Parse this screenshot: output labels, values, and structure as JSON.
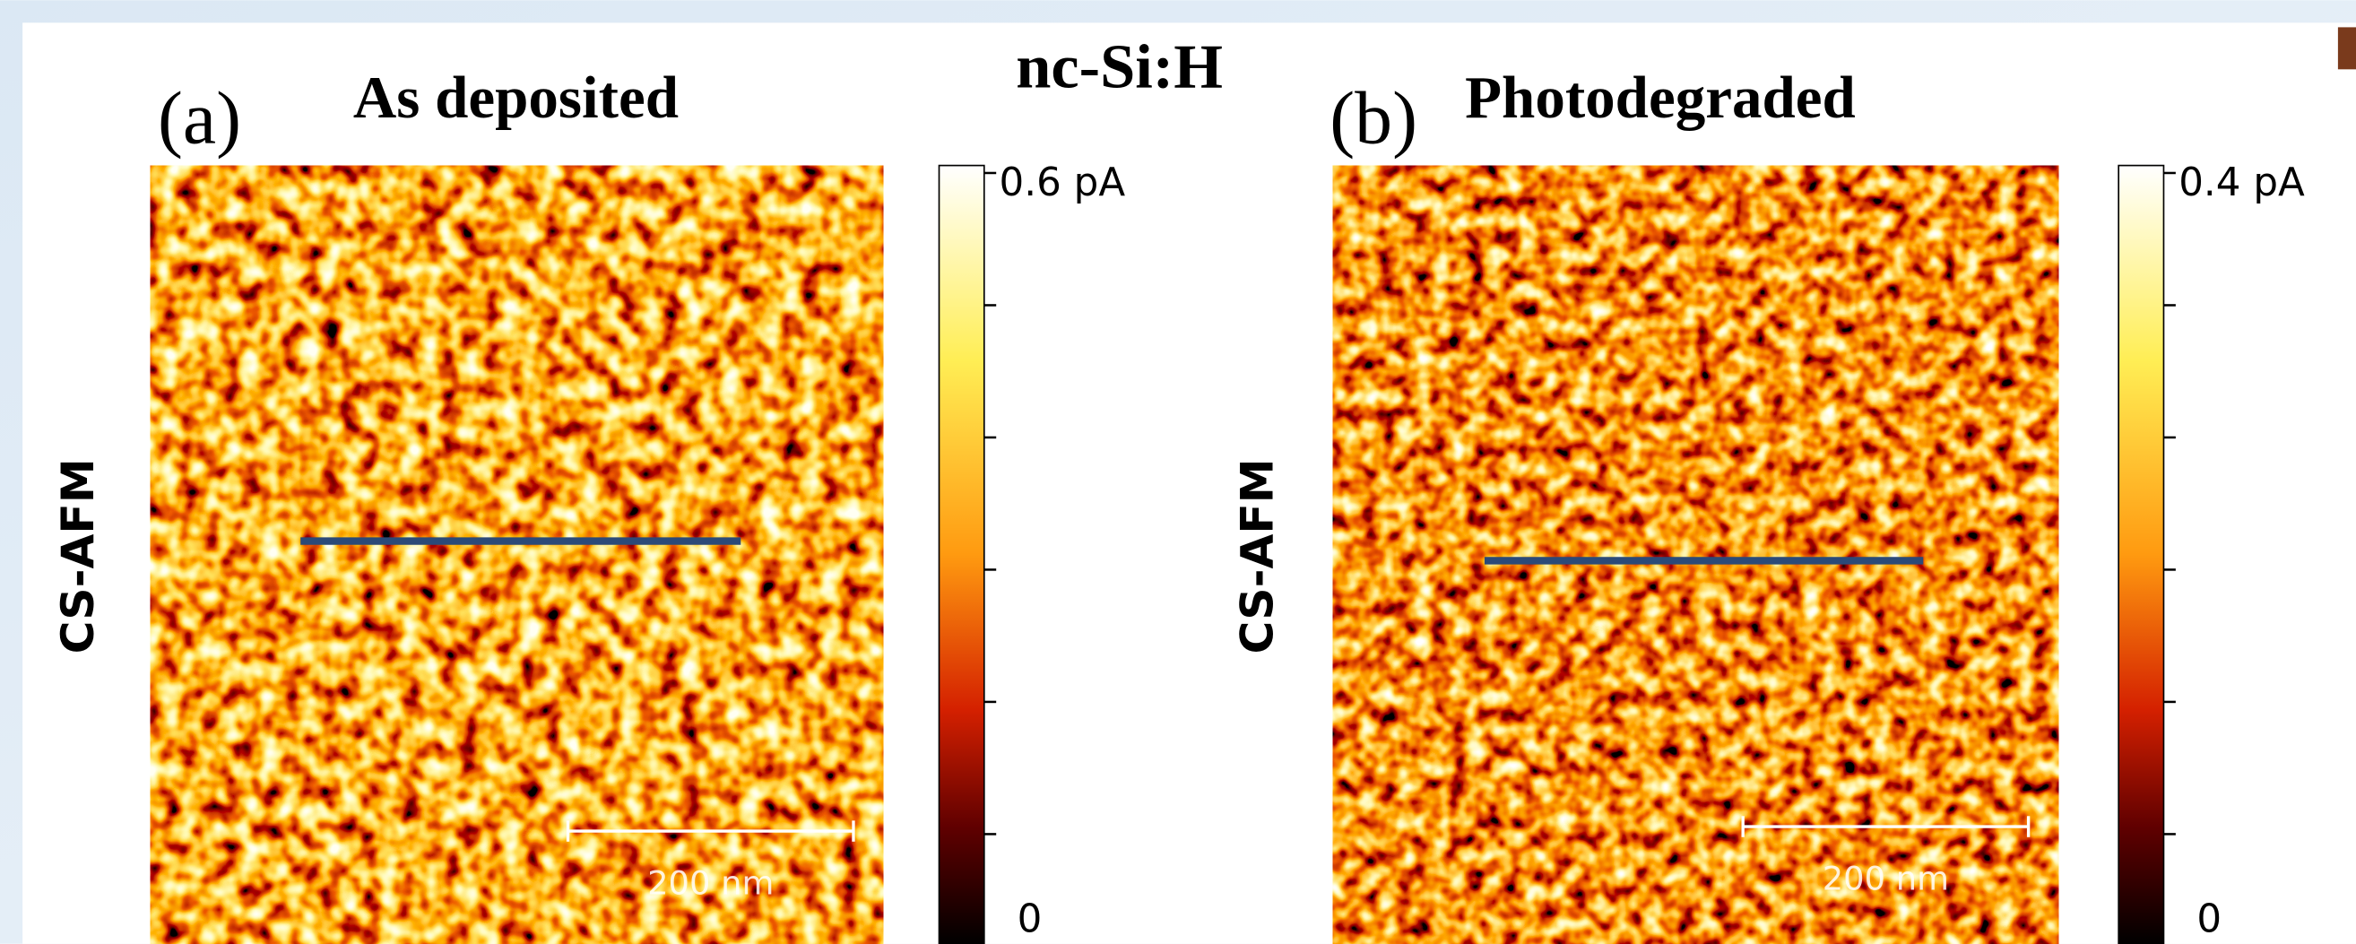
{
  "title": "nc-Si:H",
  "panels": [
    {
      "label": "(a)",
      "title": "As deposited",
      "side_label": "CS-AFM",
      "colorbar": {
        "max": "0.6 pA",
        "min": "0"
      },
      "scale_bar": "200 nm"
    },
    {
      "label": "(b)",
      "title": "Photodegraded",
      "side_label": "CS-AFM",
      "colorbar": {
        "max": "0.4 pA",
        "min": "0"
      },
      "scale_bar": "200 nm"
    }
  ]
}
